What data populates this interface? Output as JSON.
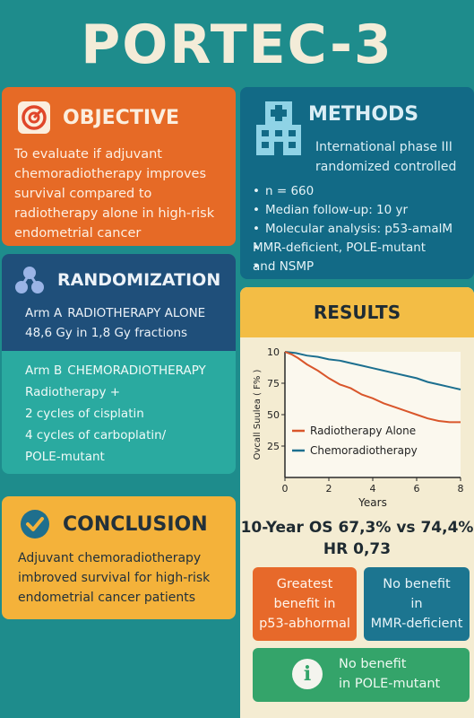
{
  "title": "PORTEC-3",
  "objective": {
    "heading": "OBJECTIVE",
    "icon": "target-icon",
    "lines": [
      "To evaluate if adjuvant",
      "chemoradiotherapy improves",
      "survival compared to",
      "radiotherapy alone in high-risk",
      "endometrial cancer"
    ]
  },
  "methods": {
    "heading": "METHODS",
    "icon": "hospital-icon",
    "subtitle_lines": [
      "International phase III",
      "randomized controlled"
    ],
    "bullets": [
      "n = 660",
      "Median follow-up: 10 yr",
      "Molecular analysis: p53-amalM",
      "MMR-deficient, POLE-mutant",
      "and NSMP"
    ]
  },
  "randomization": {
    "heading": "RANDOMIZATION",
    "icon": "network-icon",
    "arm_a": {
      "key": "Arm A",
      "label": "RADIOTHERAPY ALONE",
      "detail": "48,6 Gy in 1,8 Gy fractions"
    },
    "arm_b": {
      "key": "Arm B",
      "label": "CHEMORADIOTHERAPY",
      "lines": [
        "Radiotherapy +",
        "2 cycles of cisplatin",
        "4 cycles of carboplatin/",
        "POLE-mutant"
      ]
    }
  },
  "conclusion": {
    "heading": "CONCLUSION",
    "icon": "check-circle-icon",
    "lines": [
      "Adjuvant chemoradiotherapy",
      "imbroved survival for high-risk",
      "endometrial cancer patients"
    ]
  },
  "results": {
    "heading": "RESULTS",
    "summary_line1": "10-Year OS 67,3% vs 74,4%",
    "summary_line2": "HR 0,73",
    "tile_p53": [
      "Greatest",
      "benefit in",
      "p53-abhormal"
    ],
    "tile_mmr": [
      "No benefit",
      "in",
      "MMR-deficient"
    ],
    "tile_pole": [
      "No benefit",
      "in POLE-mutant"
    ],
    "info_icon": "info-icon"
  },
  "colors": {
    "background": "#1e8c8c",
    "radiotherapy": "#d9562b",
    "chemoradiotherapy": "#1c6f8f"
  },
  "chart_data": {
    "type": "line",
    "title": "",
    "xlabel": "Years",
    "ylabel": "Ovcall Suulea ( F% )",
    "xlim": [
      0,
      8
    ],
    "ylim": [
      0,
      100
    ],
    "x_ticks": [
      0,
      2,
      4,
      6,
      8
    ],
    "y_ticks": [
      25,
      50,
      75
    ],
    "y_tick_labels": [
      "25",
      "50",
      "75"
    ],
    "y_top_label": "10",
    "grid": false,
    "legend_position": "bottom-right",
    "series": [
      {
        "name": "Radiotherapy Alone",
        "color": "#d9562b",
        "x": [
          0,
          0.3,
          0.6,
          1,
          1.5,
          2,
          2.5,
          3,
          3.5,
          4,
          4.5,
          5,
          5.5,
          6,
          6.5,
          7,
          7.5,
          8
        ],
        "y": [
          100,
          98,
          95,
          90,
          85,
          79,
          74,
          71,
          66,
          63,
          59,
          56,
          53,
          50,
          47,
          45,
          44,
          44
        ]
      },
      {
        "name": "Chemoradiotherapy",
        "color": "#1c6f8f",
        "x": [
          0,
          0.5,
          1,
          1.5,
          2,
          2.5,
          3,
          3.5,
          4,
          4.5,
          5,
          5.5,
          6,
          6.5,
          7,
          7.5,
          8
        ],
        "y": [
          100,
          99,
          97,
          96,
          94,
          93,
          91,
          89,
          87,
          85,
          83,
          81,
          79,
          76,
          74,
          72,
          70
        ]
      }
    ]
  }
}
